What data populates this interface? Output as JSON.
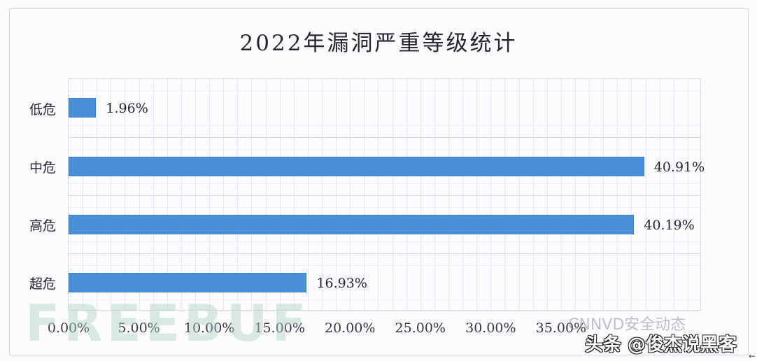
{
  "chart_data": {
    "type": "bar",
    "orientation": "horizontal",
    "title": "2022年漏洞严重等级统计",
    "categories": [
      "低危",
      "中危",
      "高危",
      "超危"
    ],
    "values": [
      1.96,
      40.91,
      40.19,
      16.93
    ],
    "value_labels": [
      "1.96%",
      "40.91%",
      "40.19%",
      "16.93%"
    ],
    "xlabel": "",
    "ylabel": "",
    "xlim": [
      0,
      45
    ],
    "x_ticks": [
      "0.00%",
      "5.00%",
      "10.00%",
      "15.00%",
      "20.00%",
      "25.00%",
      "30.00%",
      "35.00%"
    ],
    "grid": true,
    "legend": null,
    "bar_color": "#4a90d8"
  },
  "watermarks": {
    "freebuf": "FREEBUF",
    "cnnvd": "CNNVD安全动态",
    "toutiao": "头条 @俊杰说黑客"
  }
}
